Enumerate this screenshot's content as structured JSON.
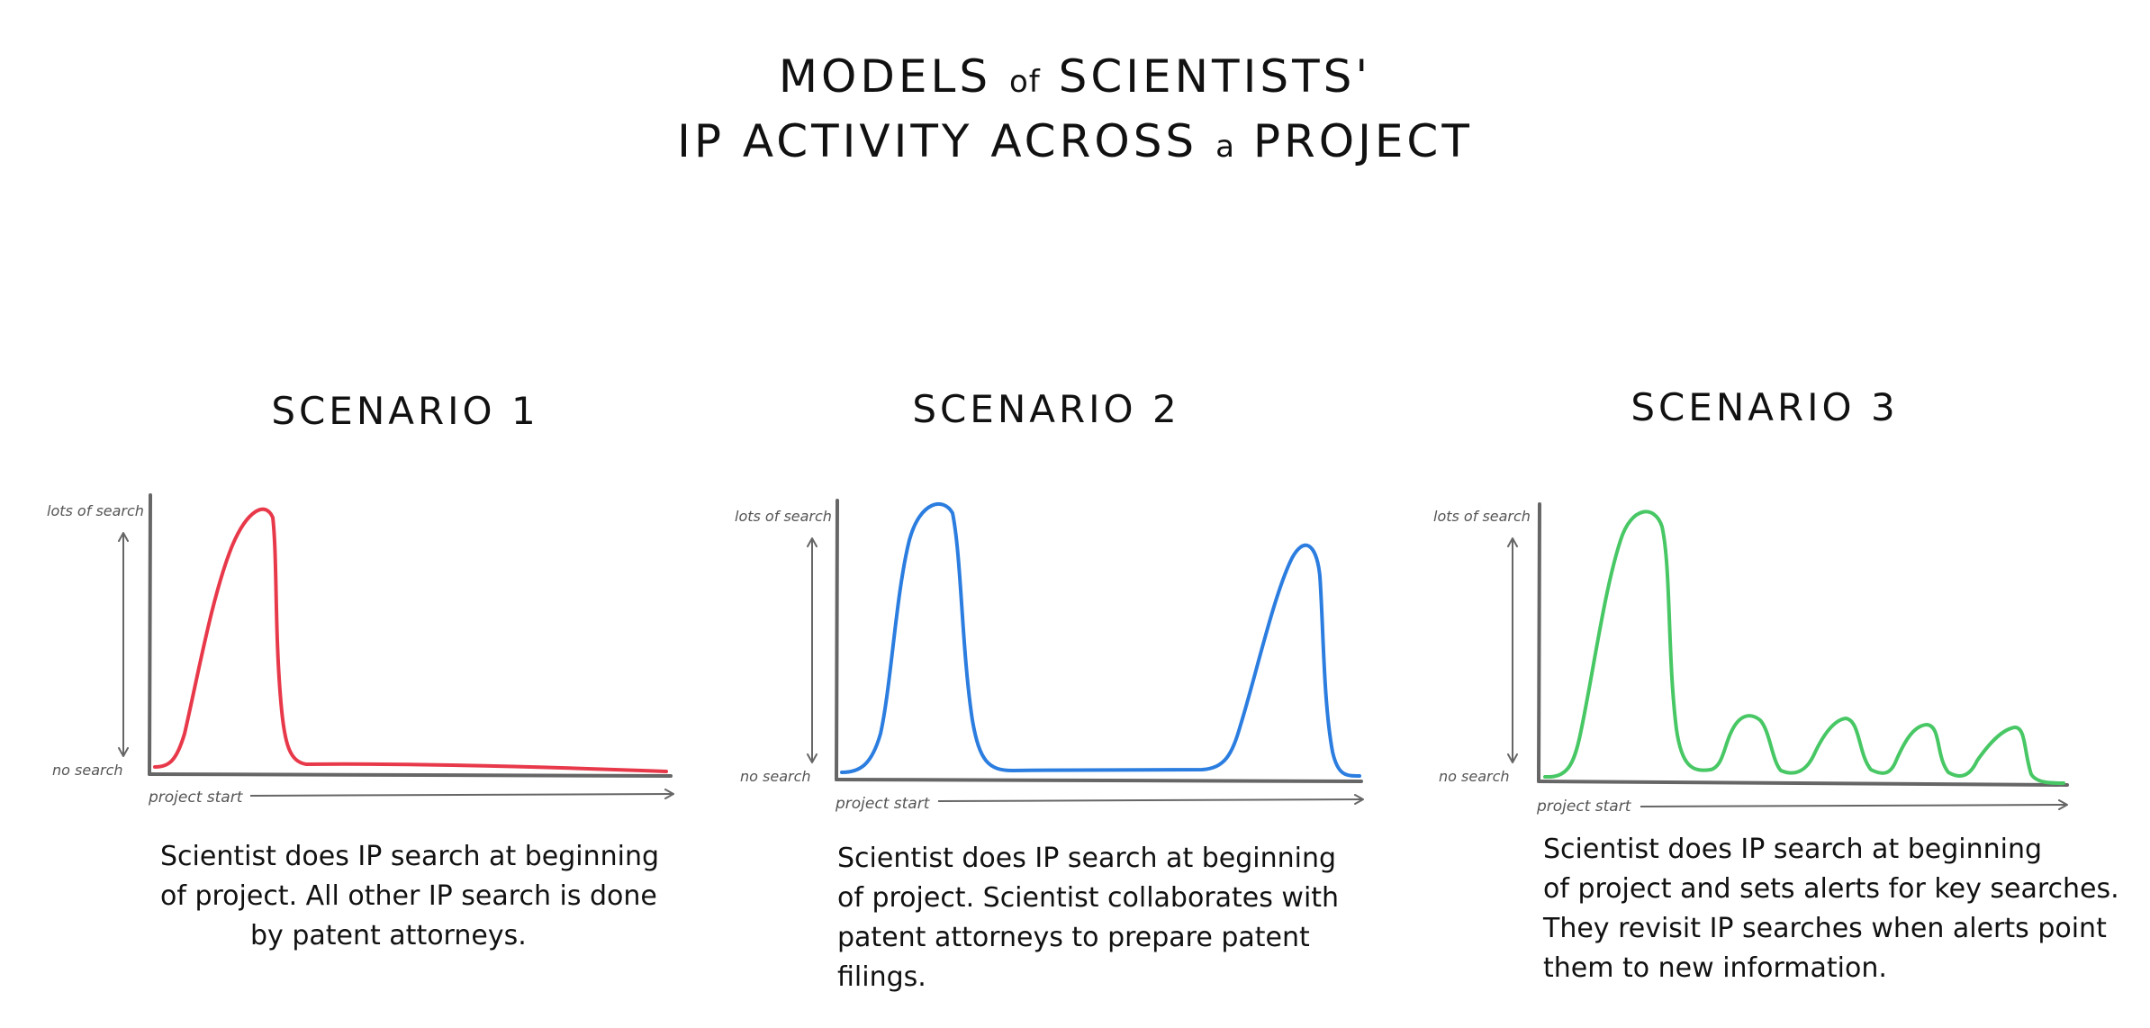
{
  "title": {
    "line1_a": "MODELS",
    "line1_b": "of",
    "line1_c": "SCIENTISTS'",
    "line2_a": "IP ACTIVITY ACROSS",
    "line2_b": "a",
    "line2_c": "PROJECT"
  },
  "axis_text": {
    "y_top": "lots of search",
    "y_bottom": "no search",
    "x_start": "project start"
  },
  "colors": {
    "scenario1": "#e8394a",
    "scenario2": "#2b7de0",
    "scenario3": "#48c765",
    "axis": "#666666"
  },
  "scenarios": [
    {
      "title": "SCENARIO 1",
      "caption_lines": [
        "Scientist does IP search at beginning",
        "of project. All other IP search is done",
        "by patent attorneys."
      ]
    },
    {
      "title": "SCENARIO 2",
      "caption_lines": [
        "Scientist does IP search at beginning",
        "of project. Scientist collaborates with",
        "patent attorneys to prepare patent filings."
      ]
    },
    {
      "title": "SCENARIO 3",
      "caption_lines": [
        "Scientist does IP search at beginning",
        "of project and sets alerts for key searches.",
        "They revisit IP searches when alerts point",
        "them to new information."
      ]
    }
  ]
}
